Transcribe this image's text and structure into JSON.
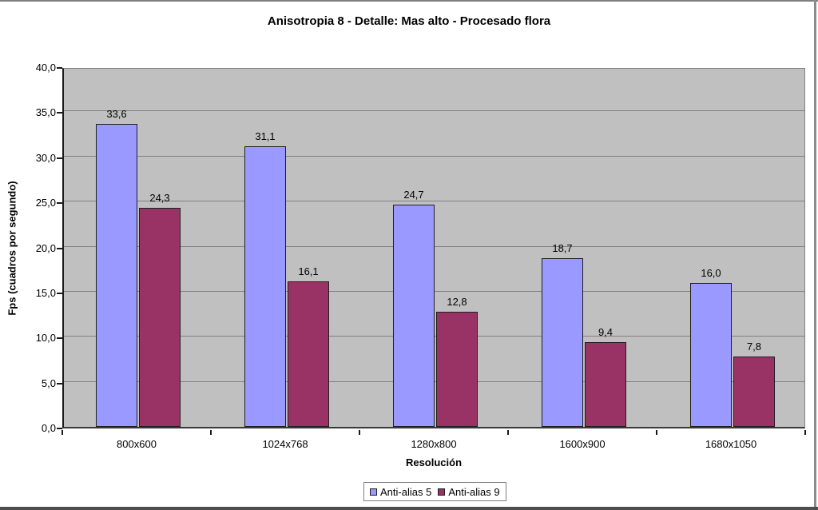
{
  "chart_data": {
    "type": "bar",
    "title": "Anisotropia 8 - Detalle: Mas alto - Procesado flora",
    "xlabel": "Resolución",
    "ylabel": "Fps (cuadros por segundo)",
    "categories": [
      "800x600",
      "1024x768",
      "1280x800",
      "1600x900",
      "1680x1050"
    ],
    "series": [
      {
        "name": "Anti-alias 5",
        "color": "#9999ff",
        "values": [
          33.6,
          31.1,
          24.7,
          18.7,
          16.0
        ],
        "labels": [
          "33,6",
          "31,1",
          "24,7",
          "18,7",
          "16,0"
        ]
      },
      {
        "name": "Anti-alias 9",
        "color": "#993366",
        "values": [
          24.3,
          16.1,
          12.8,
          9.4,
          7.8
        ],
        "labels": [
          "24,3",
          "16,1",
          "12,8",
          "9,4",
          "7,8"
        ]
      }
    ],
    "ylim": [
      0,
      40
    ],
    "yticks": [
      {
        "value": 0,
        "label": "0,0"
      },
      {
        "value": 5,
        "label": "5,0"
      },
      {
        "value": 10,
        "label": "10,0"
      },
      {
        "value": 15,
        "label": "15,0"
      },
      {
        "value": 20,
        "label": "20,0"
      },
      {
        "value": 25,
        "label": "25,0"
      },
      {
        "value": 30,
        "label": "30,0"
      },
      {
        "value": 35,
        "label": "35,0"
      },
      {
        "value": 40,
        "label": "40,0"
      }
    ],
    "grid": true,
    "legend_position": "bottom",
    "plot_bg": "#c0c0c0",
    "grid_color": "#808080",
    "decimal_separator": ","
  }
}
